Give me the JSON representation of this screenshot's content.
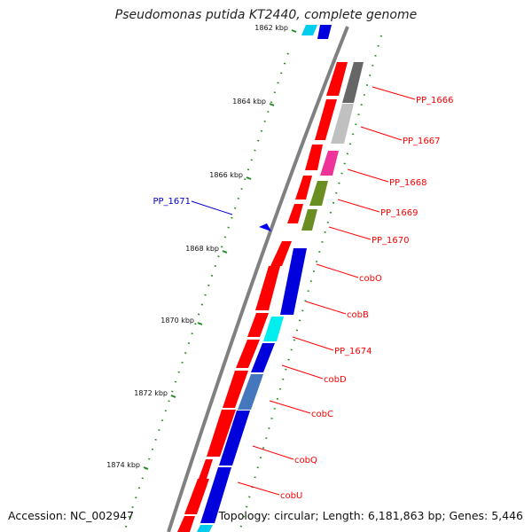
{
  "title": "Pseudomonas putida KT2440, complete genome",
  "accession": "Accession: NC_002947",
  "stats": "Topology: circular; Length: 6,181,863 bp; Genes: 5,446",
  "ticks": [
    "1862 kbp",
    "1864 kbp",
    "1866 kbp",
    "1868 kbp",
    "1870 kbp",
    "1872 kbp",
    "1874 kbp"
  ],
  "genes": [
    {
      "id": "PP_1666",
      "color": "#ff0000"
    },
    {
      "id": "PP_1667",
      "color": "#ff0000"
    },
    {
      "id": "PP_1668",
      "color": "#ff0000"
    },
    {
      "id": "PP_1669",
      "color": "#ff0000"
    },
    {
      "id": "PP_1670",
      "color": "#ff0000"
    },
    {
      "id": "cobO",
      "color": "#ff0000"
    },
    {
      "id": "cobB",
      "color": "#ff0000"
    },
    {
      "id": "PP_1674",
      "color": "#ff0000"
    },
    {
      "id": "cobD",
      "color": "#ff0000"
    },
    {
      "id": "cobC",
      "color": "#ff0000"
    },
    {
      "id": "cobQ",
      "color": "#ff0000"
    },
    {
      "id": "cobU",
      "color": "#ff0000"
    }
  ],
  "minus_strand_gene": {
    "id": "PP_1671",
    "color": "#0000cc"
  },
  "colors": {
    "cds": "#ff0000",
    "reverse": "#0000cc",
    "backbone": "#808080",
    "tick": "#228b22",
    "label_line_forward": "#ff0000",
    "label_line_reverse": "#0000cc"
  }
}
